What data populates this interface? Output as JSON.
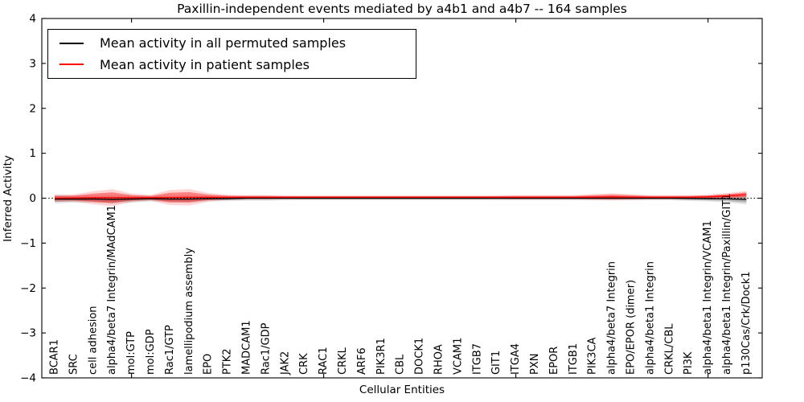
{
  "figure": {
    "title": "Paxillin-independent events mediated by a4b1 and a4b7 -- 164 samples",
    "xlabel": "Cellular Entities",
    "ylabel": "Inferred Activity"
  },
  "legend": {
    "position": "upper left",
    "items": [
      {
        "label": "Mean activity in all permuted samples",
        "color": "#000000"
      },
      {
        "label": "Mean activity in patient samples",
        "color": "#ff0000"
      }
    ]
  },
  "chart_data": {
    "type": "line",
    "title": "Paxillin-independent events mediated by a4b1 and a4b7 -- 164 samples",
    "xlabel": "Cellular Entities",
    "ylabel": "Inferred Activity",
    "ylim": [
      -4,
      4
    ],
    "yticks": [
      -4,
      -3,
      -2,
      -1,
      0,
      1,
      2,
      3,
      4
    ],
    "grid": false,
    "legend_position": "upper left",
    "zero_line": {
      "y": 0,
      "style": "dotted",
      "color": "#000000"
    },
    "x_major_tick_indices": [
      4,
      14,
      24,
      34
    ],
    "categories": [
      "BCAR1",
      "SRC",
      "cell adhesion",
      "alpha4/beta7 Integrin/MAdCAM1",
      "mol:GTP",
      "mol:GDP",
      "Rac1/GTP",
      "lamellipodium assembly",
      "EPO",
      "PTK2",
      "MADCAM1",
      "Rac1/GDP",
      "JAK2",
      "CRK",
      "RAC1",
      "CRKL",
      "ARF6",
      "PIK3R1",
      "CBL",
      "DOCK1",
      "RHOA",
      "VCAM1",
      "ITGB7",
      "GIT1",
      "ITGA4",
      "PXN",
      "EPOR",
      "ITGB1",
      "PIK3CA",
      "alpha4/beta7 Integrin",
      "EPO/EPOR (dimer)",
      "alpha4/beta1 Integrin",
      "CRKL/CBL",
      "PI3K",
      "alpha4/beta1 Integrin/VCAM1",
      "alpha4/beta1 Integrin/Paxillin/GIT1",
      "p130Cas/Crk/Dock1"
    ],
    "series": [
      {
        "name": "Mean activity in all permuted samples",
        "line_color": "#000000",
        "band_inner_color": "rgba(0,0,0,0.20)",
        "band_outer_color": "rgba(0,0,0,0.10)",
        "mean": [
          -0.02,
          -0.02,
          -0.02,
          -0.03,
          -0.02,
          -0.01,
          -0.02,
          -0.02,
          -0.01,
          -0.01,
          0,
          0,
          0,
          0,
          0,
          0,
          0,
          0,
          0,
          0,
          0,
          0,
          0,
          0,
          0,
          0,
          0,
          0,
          0,
          0,
          0,
          0,
          0,
          -0.005,
          -0.01,
          -0.015,
          -0.03
        ],
        "sd": [
          0.06,
          0.05,
          0.05,
          0.06,
          0.05,
          0.04,
          0.05,
          0.05,
          0.04,
          0.035,
          0.035,
          0.035,
          0.03,
          0.03,
          0.03,
          0.03,
          0.03,
          0.03,
          0.03,
          0.03,
          0.03,
          0.03,
          0.03,
          0.03,
          0.03,
          0.03,
          0.03,
          0.03,
          0.03,
          0.03,
          0.03,
          0.03,
          0.03,
          0.035,
          0.04,
          0.05,
          0.07
        ]
      },
      {
        "name": "Mean activity in patient samples",
        "line_color": "#ff0000",
        "band_inner_color": "rgba(255,0,0,0.40)",
        "band_outer_color": "rgba(255,0,0,0.16)",
        "mean": [
          0.0,
          0.005,
          0.01,
          0.01,
          0.01,
          0.01,
          0.015,
          0.02,
          0.02,
          0.02,
          0.02,
          0.02,
          0.02,
          0.02,
          0.02,
          0.02,
          0.02,
          0.02,
          0.02,
          0.02,
          0.02,
          0.02,
          0.02,
          0.02,
          0.02,
          0.02,
          0.02,
          0.02,
          0.025,
          0.03,
          0.025,
          0.02,
          0.02,
          0.02,
          0.03,
          0.05,
          0.08
        ],
        "sd": [
          0.05,
          0.05,
          0.09,
          0.12,
          0.06,
          0.04,
          0.105,
          0.115,
          0.06,
          0.035,
          0.03,
          0.03,
          0.025,
          0.025,
          0.025,
          0.025,
          0.025,
          0.025,
          0.025,
          0.025,
          0.025,
          0.025,
          0.025,
          0.025,
          0.03,
          0.03,
          0.03,
          0.03,
          0.04,
          0.05,
          0.04,
          0.03,
          0.03,
          0.03,
          0.03,
          0.04,
          0.05
        ]
      }
    ]
  }
}
